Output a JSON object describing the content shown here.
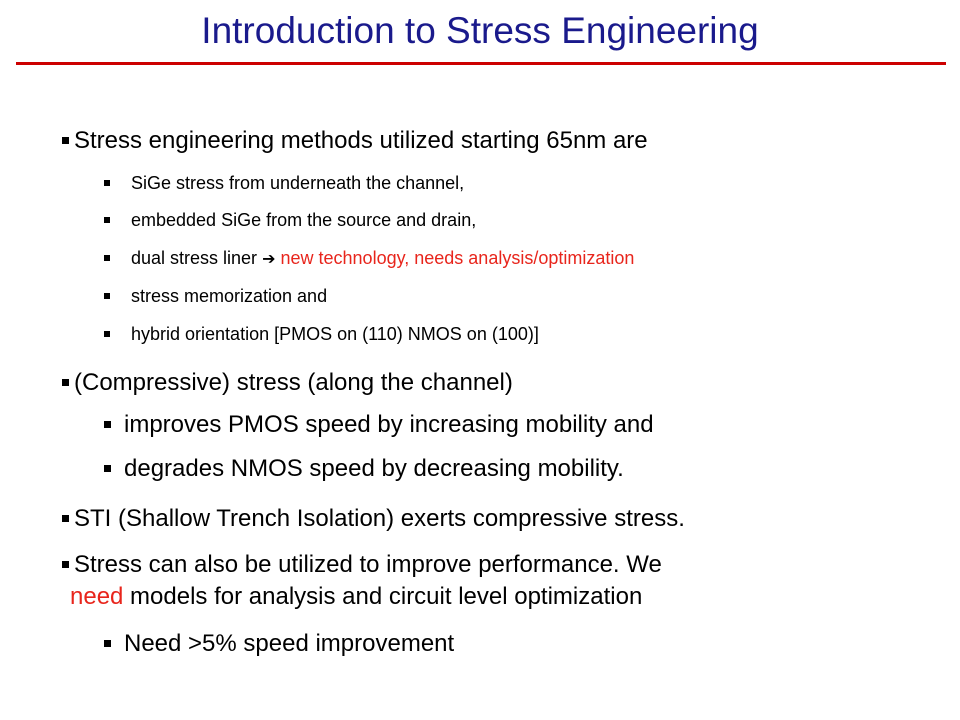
{
  "slide": {
    "title": "Introduction to Stress Engineering",
    "colors": {
      "title": "#1a1a8c",
      "rule": "#cc0000",
      "highlight": "#e8251c"
    },
    "bullets": {
      "b1": "Stress engineering methods utilized starting 65nm are",
      "b1_1": "SiGe stress from underneath the channel,",
      "b1_2": "embedded SiGe from the source and drain,",
      "b1_3_text": "dual stress liner",
      "b1_3_arrow": "➔",
      "b1_3_red": "new technology, needs analysis/optimization",
      "b1_4": "stress memorization and",
      "b1_5": "hybrid orientation [PMOS on (110) NMOS on (100)]",
      "b2": "(Compressive) stress (along the channel)",
      "b2_1": "improves PMOS speed by increasing mobility and",
      "b2_2": "degrades NMOS speed by decreasing mobility.",
      "b3": "STI (Shallow Trench Isolation) exerts compressive stress.",
      "b4_line1": "Stress can also be utilized to improve performance. We",
      "b4_line2_red": "need",
      "b4_line2_rest": " models for analysis and circuit level optimization",
      "b4_1": "Need >5% speed improvement"
    }
  }
}
